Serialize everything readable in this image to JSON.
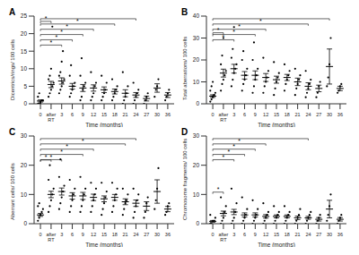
{
  "chart_data": [
    {
      "type": "scatter",
      "title": "A",
      "x_label": "Time (months)",
      "y_label": "Dicentrics/rings/ 100 cells",
      "color": "#000000",
      "categories": [
        "0",
        "after RT",
        "3",
        "6",
        "9",
        "12",
        "15",
        "18",
        "21",
        "24",
        "27",
        "30",
        "36"
      ],
      "points": [
        [
          0,
          0,
          0,
          1,
          1,
          2,
          3,
          0.5
        ],
        [
          2,
          3,
          4,
          5,
          6,
          7,
          8,
          10,
          22
        ],
        [
          3,
          4,
          5,
          6,
          7,
          8,
          9,
          12,
          15
        ],
        [
          2,
          3,
          4,
          5,
          6,
          8,
          11
        ],
        [
          1,
          2,
          4,
          5,
          6,
          8,
          13
        ],
        [
          1,
          2,
          3,
          5,
          6,
          9
        ],
        [
          1,
          2,
          3,
          4,
          6,
          8
        ],
        [
          1,
          2,
          3,
          4,
          5,
          7
        ],
        [
          0,
          1,
          2,
          3,
          5,
          9
        ],
        [
          0,
          1,
          2,
          3,
          4,
          6
        ],
        [
          0,
          1,
          2,
          3
        ],
        [
          2,
          4,
          5,
          7
        ],
        [
          1,
          2,
          3,
          4
        ]
      ],
      "means": [
        0.8,
        5.5,
        6.5,
        5,
        4.5,
        4.5,
        4,
        3.5,
        3,
        2.5,
        1.5,
        4.5,
        2.5
      ],
      "errors": [
        0.3,
        0.9,
        0.9,
        0.8,
        1,
        0.9,
        0.8,
        0.7,
        1,
        0.7,
        0.7,
        1.2,
        0.7
      ],
      "ylim": [
        0,
        25
      ],
      "yticks": [
        0,
        5,
        10,
        15,
        20,
        25
      ],
      "annotations": [
        {
          "from": "0",
          "to": "after RT",
          "text": "*"
        },
        {
          "from": "0",
          "to": "3",
          "text": "*"
        },
        {
          "from": "0",
          "to": "6",
          "text": "*"
        },
        {
          "from": "0",
          "to": "9",
          "text": "*"
        },
        {
          "from": "0",
          "to": "12",
          "text": "*"
        },
        {
          "from": "0",
          "to": "18",
          "text": "*"
        },
        {
          "from": "0",
          "to": "24",
          "text": "*"
        }
      ]
    },
    {
      "type": "scatter",
      "title": "B",
      "x_label": "Time (months)",
      "y_label": "Total aberrations/ 100 cells",
      "color": "#000000",
      "categories": [
        "0",
        "after RT",
        "3",
        "6",
        "9",
        "12",
        "15",
        "18",
        "21",
        "24",
        "27",
        "30",
        "36"
      ],
      "points": [
        [
          1,
          2,
          3,
          4,
          5,
          6,
          8,
          10
        ],
        [
          6,
          9,
          11,
          13,
          15,
          18,
          22,
          30
        ],
        [
          8,
          11,
          14,
          16,
          18,
          21,
          25,
          35
        ],
        [
          6,
          9,
          11,
          13,
          16,
          20,
          24
        ],
        [
          5,
          8,
          11,
          13,
          16,
          20,
          28
        ],
        [
          5,
          8,
          10,
          12,
          15,
          21
        ],
        [
          4,
          7,
          10,
          12,
          14,
          19
        ],
        [
          6,
          9,
          11,
          13,
          15,
          18
        ],
        [
          4,
          7,
          9,
          11,
          13,
          16
        ],
        [
          3,
          5,
          7,
          9,
          11,
          15
        ],
        [
          3,
          5,
          8,
          10
        ],
        [
          8,
          12,
          18,
          30
        ],
        [
          5,
          6,
          8,
          9
        ]
      ],
      "means": [
        3.5,
        14,
        16,
        13,
        13,
        12,
        11,
        12,
        10,
        8,
        7,
        17,
        7
      ],
      "errors": [
        0.6,
        1.8,
        2,
        1.7,
        2,
        1.8,
        1.6,
        1.4,
        1.7,
        1.6,
        1.5,
        8,
        1
      ],
      "ylim": [
        0,
        40
      ],
      "yticks": [
        0,
        10,
        20,
        30,
        40
      ],
      "annotations": [
        {
          "from": "0",
          "to": "after RT",
          "text": "*"
        },
        {
          "from": "0",
          "to": "3",
          "text": "*"
        },
        {
          "from": "0",
          "to": "9",
          "text": "*"
        },
        {
          "from": "0",
          "to": "12",
          "text": "*"
        },
        {
          "from": "0",
          "to": "24",
          "text": "*"
        },
        {
          "from": "0",
          "to": "30",
          "text": "*"
        }
      ]
    },
    {
      "type": "scatter",
      "title": "C",
      "x_label": "Time (months)",
      "y_label": "Aberrant cells/ 100 cells",
      "color": "#000000",
      "categories": [
        "0",
        "after RT",
        "3",
        "6",
        "9",
        "12",
        "15",
        "18",
        "21",
        "24",
        "27",
        "30",
        "36"
      ],
      "points": [
        [
          1,
          2,
          3,
          4,
          5,
          6,
          7
        ],
        [
          4,
          6,
          8,
          10,
          12,
          15,
          20
        ],
        [
          5,
          7,
          9,
          11,
          13,
          16,
          22
        ],
        [
          4,
          6,
          8,
          10,
          12,
          15
        ],
        [
          4,
          6,
          8,
          10,
          12,
          16
        ],
        [
          4,
          6,
          8,
          10,
          12,
          14
        ],
        [
          3,
          5,
          7,
          9,
          11,
          14
        ],
        [
          4,
          6,
          8,
          10,
          12,
          14
        ],
        [
          3,
          5,
          7,
          8,
          10,
          12
        ],
        [
          2,
          4,
          6,
          8,
          10,
          12
        ],
        [
          2,
          4,
          7,
          9
        ],
        [
          5,
          8,
          12,
          19
        ],
        [
          3,
          4,
          6,
          7
        ]
      ],
      "means": [
        3,
        10,
        11,
        9.5,
        9.5,
        9,
        8.5,
        9,
        7.5,
        7,
        6,
        11,
        5
      ],
      "errors": [
        0.5,
        1.1,
        1.2,
        1.1,
        1.2,
        1.1,
        1,
        1,
        1,
        1.1,
        1.5,
        4,
        0.9
      ],
      "ylim": [
        0,
        30
      ],
      "yticks": [
        0,
        10,
        20,
        30
      ],
      "annotations": [
        {
          "from": "0",
          "to": "after RT",
          "text": "*"
        },
        {
          "from": "0",
          "to": "3",
          "text": "*"
        },
        {
          "from": "0",
          "to": "9",
          "text": "*"
        },
        {
          "from": "0",
          "to": "12",
          "text": "*"
        },
        {
          "from": "0",
          "to": "21",
          "text": "*"
        },
        {
          "from": "0",
          "to": "24",
          "text": "*"
        }
      ]
    },
    {
      "type": "scatter",
      "title": "D",
      "x_label": "Time (months)",
      "y_label": "Chromosome fragments/ 100 cells",
      "color": "#000000",
      "categories": [
        "0",
        "after RT",
        "3",
        "6",
        "9",
        "12",
        "15",
        "18",
        "21",
        "24",
        "27",
        "30",
        "36"
      ],
      "points": [
        [
          0,
          0,
          1,
          1,
          2,
          3
        ],
        [
          0,
          1,
          2,
          4,
          6,
          9
        ],
        [
          0,
          1,
          2,
          4,
          7,
          12
        ],
        [
          0,
          1,
          2,
          3,
          5,
          9
        ],
        [
          0,
          1,
          2,
          3,
          5,
          8
        ],
        [
          0,
          1,
          2,
          3,
          4,
          7
        ],
        [
          0,
          1,
          2,
          3,
          4,
          6
        ],
        [
          0,
          1,
          2,
          3,
          4,
          6
        ],
        [
          0,
          1,
          2,
          3,
          5
        ],
        [
          0,
          1,
          2,
          3,
          4
        ],
        [
          0,
          1,
          2,
          3
        ],
        [
          1,
          3,
          6,
          10
        ],
        [
          0,
          1,
          2,
          3
        ]
      ],
      "means": [
        0.8,
        3.5,
        4,
        3,
        3,
        2.5,
        2.5,
        2.5,
        2,
        2,
        1.5,
        5,
        1.5
      ],
      "errors": [
        0.3,
        0.8,
        0.9,
        0.7,
        0.7,
        0.6,
        0.5,
        0.5,
        0.6,
        0.5,
        0.6,
        3,
        0.6
      ],
      "ylim": [
        0,
        30
      ],
      "yticks": [
        0,
        10,
        20,
        30
      ],
      "annotations": [
        {
          "from": "0",
          "to": "after RT",
          "text": "*"
        },
        {
          "from": "0",
          "to": "3",
          "text": "*"
        },
        {
          "from": "0",
          "to": "6",
          "text": "*"
        },
        {
          "from": "0",
          "to": "9",
          "text": "*"
        },
        {
          "from": "0",
          "to": "12",
          "text": "*"
        },
        {
          "from": "0",
          "to": "24",
          "text": "*"
        }
      ]
    }
  ]
}
